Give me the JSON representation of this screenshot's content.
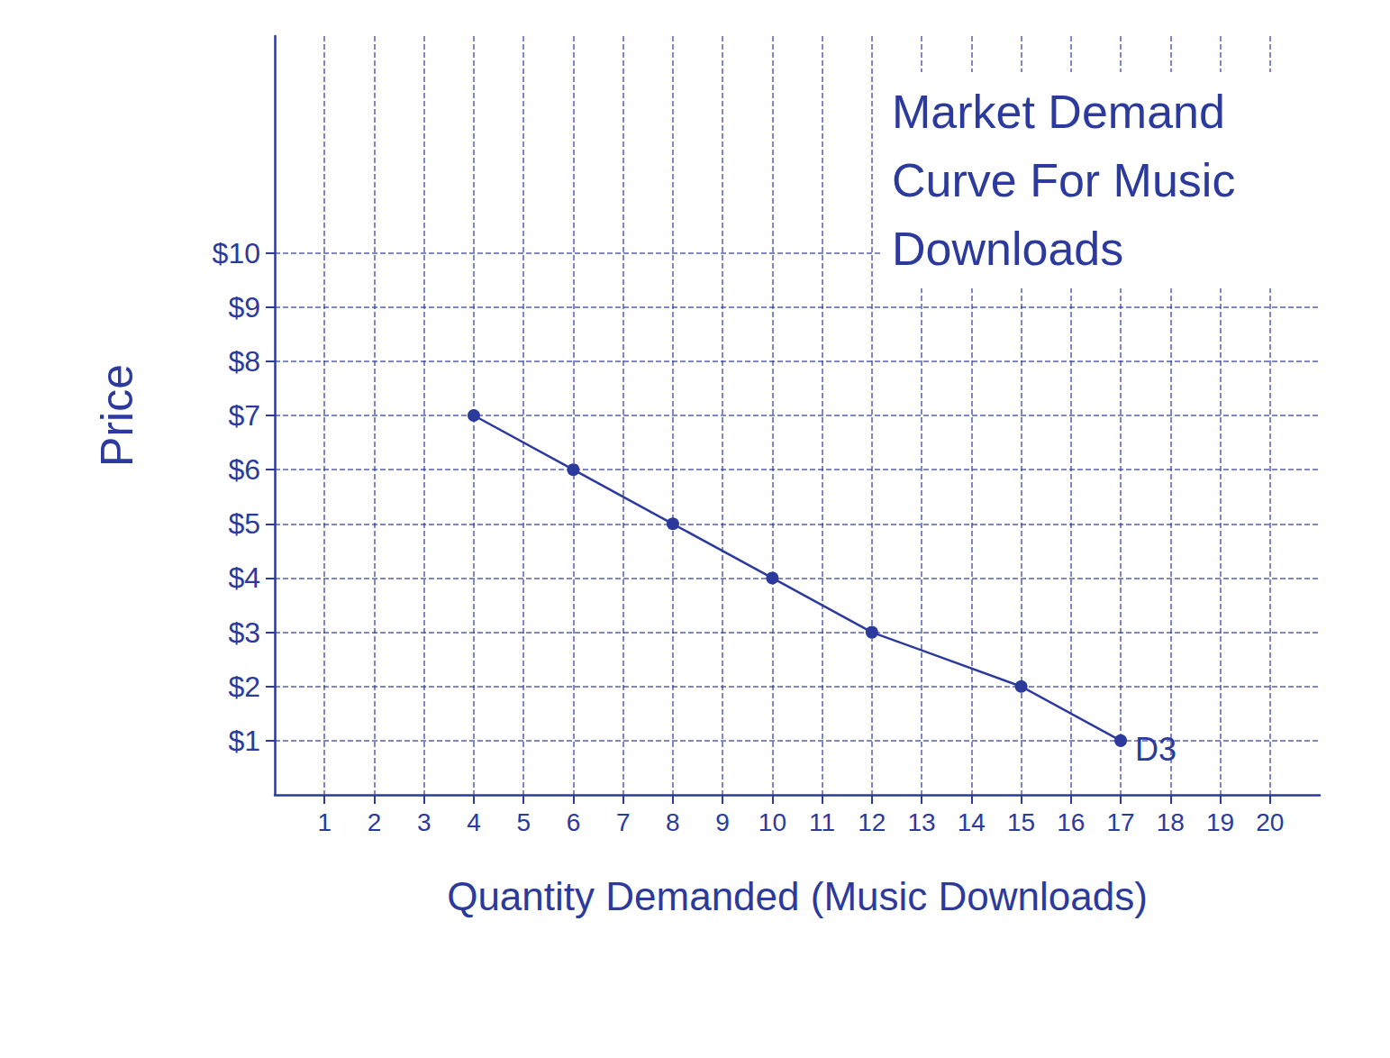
{
  "chart_data": {
    "type": "line",
    "title": "Market Demand Curve For Music Downloads",
    "x_label": "Quantity Demanded (Music Downloads)",
    "y_label": "Price",
    "series": [
      {
        "name": "D3",
        "color": "#2b3a9c",
        "marker": "circle",
        "line_style": "solid",
        "x": [
          4,
          6,
          8,
          10,
          12,
          15,
          17
        ],
        "values": [
          7,
          6,
          5,
          4,
          3,
          2,
          1
        ]
      }
    ],
    "xlim": [
      0,
      21
    ],
    "xticks": [
      1,
      2,
      3,
      4,
      5,
      6,
      7,
      8,
      9,
      10,
      11,
      12,
      13,
      14,
      15,
      16,
      17,
      18,
      19,
      20
    ],
    "ylim": [
      0,
      14
    ],
    "yticks": [
      {
        "value": 1,
        "label": "$1"
      },
      {
        "value": 2,
        "label": "$2"
      },
      {
        "value": 3,
        "label": "$3"
      },
      {
        "value": 4,
        "label": "$4"
      },
      {
        "value": 5,
        "label": "$5"
      },
      {
        "value": 6,
        "label": "$6"
      },
      {
        "value": 7,
        "label": "$7"
      },
      {
        "value": 8,
        "label": "$8"
      },
      {
        "value": 9,
        "label": "$9"
      },
      {
        "value": 10,
        "label": "$10"
      }
    ],
    "grid": true
  }
}
